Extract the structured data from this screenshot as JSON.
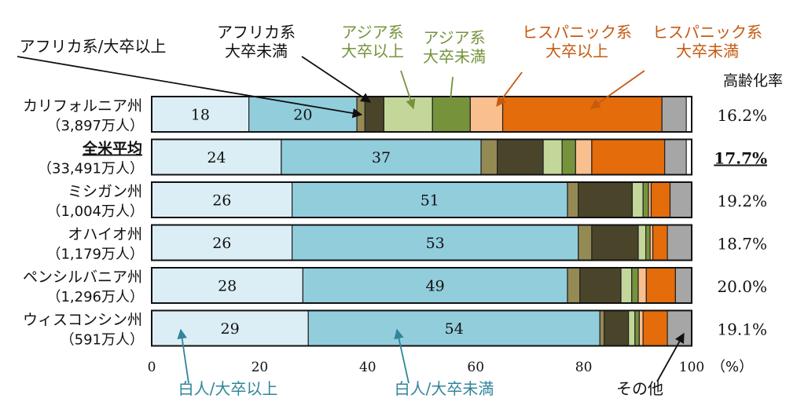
{
  "chart_data": {
    "type": "bar",
    "orientation": "horizontal",
    "stacked": true,
    "xlim": [
      0,
      100
    ],
    "xticks": [
      "0",
      "20",
      "40",
      "60",
      "80",
      "100"
    ],
    "x_unit": "（%）",
    "rate_header": "高齢化率",
    "categories": [
      {
        "name": "カリフォルニア州",
        "sub": "（3,897万人）",
        "rate": "16.2%",
        "highlight": false
      },
      {
        "name": "全米平均",
        "sub": "（33,491万人）",
        "rate": "17.7%",
        "highlight": true
      },
      {
        "name": "ミシガン州",
        "sub": "（1,004万人）",
        "rate": "19.2%",
        "highlight": false
      },
      {
        "name": "オハイオ州",
        "sub": "（1,179万人）",
        "rate": "18.7%",
        "highlight": false
      },
      {
        "name": "ペンシルバニア州",
        "sub": "（1,296万人）",
        "rate": "20.0%",
        "highlight": false
      },
      {
        "name": "ウィスコンシン州",
        "sub": "（591万人）",
        "rate": "19.1%",
        "highlight": false
      }
    ],
    "series": [
      {
        "name": "白人/大卒以上",
        "color": "#dbeef6",
        "values": [
          18,
          24,
          26,
          26,
          28,
          29
        ],
        "show_labels": true
      },
      {
        "name": "白人/大卒未満",
        "color": "#92cddc",
        "values": [
          20,
          37,
          51,
          53,
          49,
          54
        ],
        "show_labels": true
      },
      {
        "name": "アフリカ系/大卒以上",
        "color": "#948a54",
        "values": [
          1.5,
          3,
          2,
          2.5,
          2.3,
          0.8
        ],
        "show_labels": false
      },
      {
        "name": "アフリカ系大卒未満",
        "color": "#4a452a",
        "values": [
          3.5,
          8.5,
          10,
          8.6,
          7.6,
          4.5
        ],
        "show_labels": false
      },
      {
        "name": "アジア系大卒以上",
        "color": "#c4d79b",
        "values": [
          9,
          3.5,
          2,
          1.4,
          2,
          1.2
        ],
        "show_labels": false
      },
      {
        "name": "アジア系大卒未満",
        "color": "#76933c",
        "values": [
          7,
          2.5,
          1,
          0.8,
          1.2,
          0.8
        ],
        "show_labels": false
      },
      {
        "name": "ヒスパニック系大卒以上",
        "color": "#fabf8f",
        "values": [
          6,
          3,
          0.5,
          0.5,
          1.5,
          0.7
        ],
        "show_labels": false
      },
      {
        "name": "ヒスパニック系大卒未満",
        "color": "#e46c0a",
        "values": [
          29.5,
          13.5,
          3.5,
          2.7,
          5.4,
          4.5
        ],
        "show_labels": false
      },
      {
        "name": "その他",
        "color": "#a6a6a6",
        "values": [
          4.5,
          4,
          4,
          4.5,
          3,
          4.5
        ],
        "show_labels": false
      }
    ],
    "annotations": [
      {
        "lines": [
          "アフリカ系/大卒以上"
        ],
        "color": "#111111"
      },
      {
        "lines": [
          "アフリカ系",
          "大卒未満"
        ],
        "color": "#111111"
      },
      {
        "lines": [
          "アジア系",
          "大卒以上"
        ],
        "color": "#76933c"
      },
      {
        "lines": [
          "アジア系",
          "大卒未満"
        ],
        "color": "#76933c"
      },
      {
        "lines": [
          "ヒスパニック系",
          "大卒以上"
        ],
        "color": "#c55a11"
      },
      {
        "lines": [
          "ヒスパニック系",
          "大卒未満"
        ],
        "color": "#c55a11"
      },
      {
        "lines": [
          "白人/大卒以上"
        ],
        "color": "#31859c"
      },
      {
        "lines": [
          "白人/大卒未満"
        ],
        "color": "#31859c"
      },
      {
        "lines": [
          "その他"
        ],
        "color": "#111111"
      }
    ]
  }
}
